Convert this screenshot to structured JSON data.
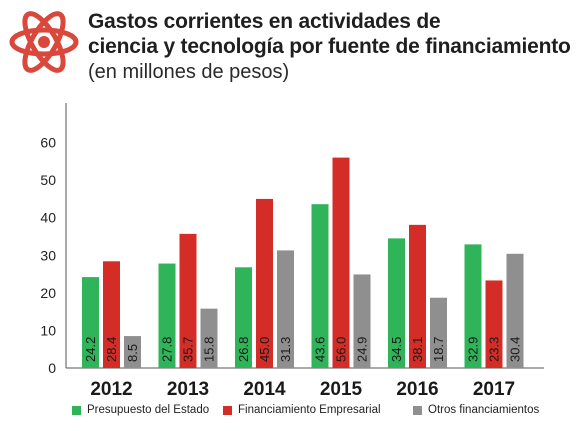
{
  "title_line1": "Gastos corrientes en actividades de",
  "title_line2": "ciencia y tecnología  por fuente de financiamiento",
  "subtitle": "(en millones de pesos)",
  "icon": "atom-icon",
  "colors": {
    "accent": "#d9483b",
    "green": "#2fb45a",
    "red": "#d42d27",
    "gray": "#8f8f8f",
    "title": "#1f1f1f"
  },
  "chart_data": {
    "type": "bar",
    "categories": [
      "2012",
      "2013",
      "2014",
      "2015",
      "2016",
      "2017"
    ],
    "series": [
      {
        "name": "Presupuesto del Estado",
        "color": "#2fb45a",
        "values": [
          24.2,
          27.8,
          26.8,
          43.6,
          34.5,
          32.9
        ],
        "labels": [
          "24.2",
          "27.8",
          "26.8",
          "43.6",
          "34.5",
          "32.9"
        ]
      },
      {
        "name": "Financiamiento Empresarial",
        "color": "#d42d27",
        "values": [
          28.4,
          35.7,
          45.0,
          56.0,
          38.1,
          23.3
        ],
        "labels": [
          "28.4",
          "35.7",
          "45.0",
          "56.0",
          "38.1",
          "23.3"
        ]
      },
      {
        "name": "Otros financiamientos",
        "color": "#8f8f8f",
        "values": [
          8.5,
          15.8,
          31.3,
          24.9,
          18.7,
          30.4
        ],
        "labels": [
          "8.5",
          "15.8",
          "31.3",
          "24.9",
          "18.7",
          "30.4"
        ]
      }
    ],
    "yticks": [
      "0",
      "10",
      "20",
      "30",
      "40",
      "50",
      "60"
    ],
    "ylim": [
      0,
      70
    ],
    "grid": false,
    "legend_position": "bottom"
  }
}
